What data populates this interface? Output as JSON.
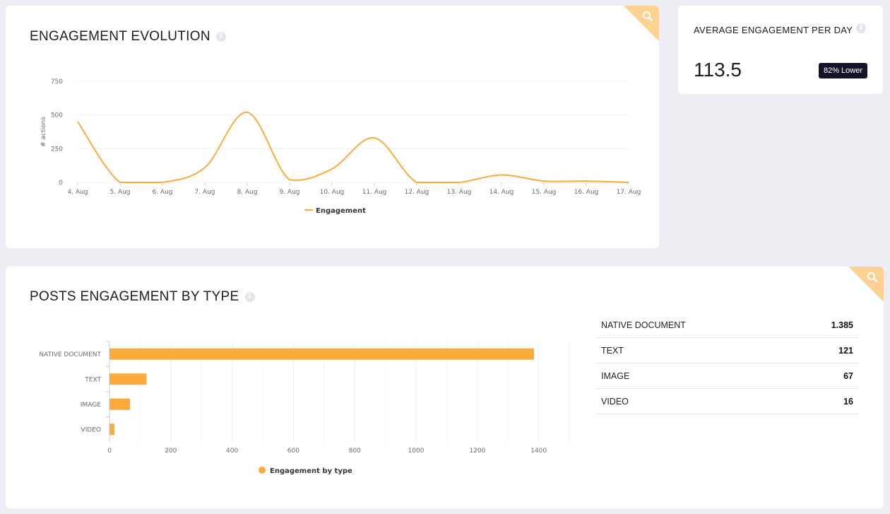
{
  "evolution": {
    "title": "ENGAGEMENT EVOLUTION",
    "info_glyph": "i",
    "search_icon": "search-icon",
    "chart_data": {
      "type": "line",
      "x": [
        "4. Aug",
        "5. Aug",
        "6. Aug",
        "7. Aug",
        "8. Aug",
        "9. Aug",
        "10. Aug",
        "11. Aug",
        "12. Aug",
        "13. Aug",
        "14. Aug",
        "15. Aug",
        "16. Aug",
        "17. Aug"
      ],
      "series": [
        {
          "name": "Engagement",
          "values": [
            450,
            0,
            0,
            110,
            520,
            20,
            100,
            330,
            0,
            0,
            55,
            10,
            10,
            0
          ]
        }
      ],
      "ylabel": "# actions",
      "xlabel": "",
      "yticks": [
        0,
        250,
        500,
        750
      ],
      "ylim": [
        0,
        750
      ],
      "grid": true,
      "legend": "bottom-center",
      "color": "#fbab3b"
    }
  },
  "average": {
    "title": "AVERAGE ENGAGEMENT PER DAY",
    "info_glyph": "i",
    "value": "113.5",
    "badge": "82% Lower"
  },
  "types": {
    "title": "POSTS ENGAGEMENT BY TYPE",
    "info_glyph": "i",
    "search_icon": "search-icon",
    "chart_data": {
      "type": "bar",
      "orientation": "horizontal",
      "categories": [
        "NATIVE DOCUMENT",
        "TEXT",
        "IMAGE",
        "VIDEO"
      ],
      "series": [
        {
          "name": "Engagement by type",
          "values": [
            1385,
            121,
            67,
            16
          ]
        }
      ],
      "xticks": [
        0,
        200,
        400,
        600,
        800,
        1000,
        1200,
        1400
      ],
      "xlim": [
        0,
        1500
      ],
      "grid": true,
      "legend": "bottom-center",
      "color": "#fbab3b"
    },
    "table": [
      {
        "name": "NATIVE DOCUMENT",
        "value": "1.385"
      },
      {
        "name": "TEXT",
        "value": "121"
      },
      {
        "name": "IMAGE",
        "value": "67"
      },
      {
        "name": "VIDEO",
        "value": "16"
      }
    ]
  }
}
